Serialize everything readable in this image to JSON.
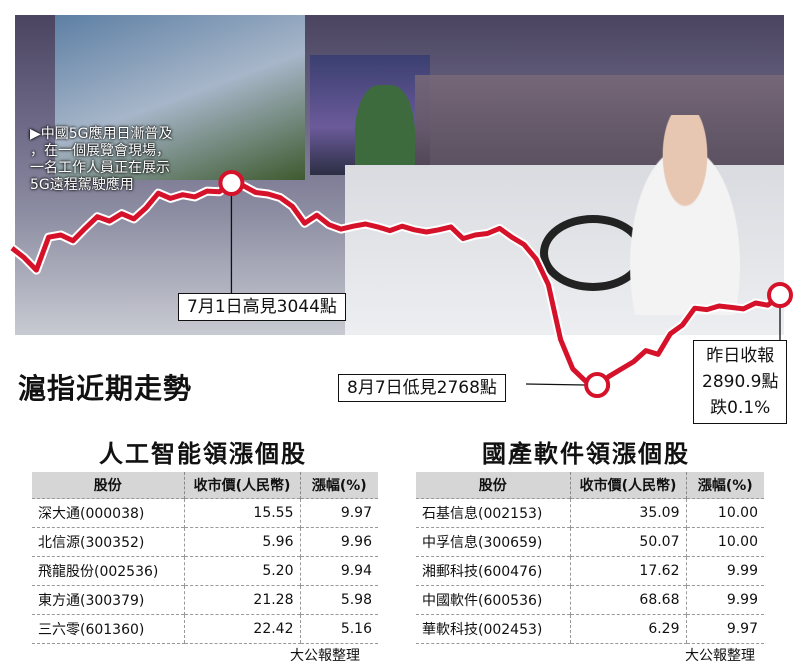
{
  "photo_caption": [
    "▶中國5G應用日漸普及",
    "，在一個展覽會現場，",
    "一名工作人員正在展示",
    "5G遠程駕駛應用"
  ],
  "chart_data": {
    "type": "line",
    "title": "滬指近期走勢",
    "series": [
      {
        "values": [
          2955,
          2942,
          2925,
          2970,
          2973,
          2965,
          2982,
          2998,
          2992,
          3002,
          2995,
          3010,
          3030,
          3023,
          3028,
          3025,
          3033,
          3032,
          3044,
          3040,
          3031,
          3029,
          3024,
          3012,
          2989,
          3000,
          2987,
          2981,
          2985,
          2988,
          2984,
          2979,
          2985,
          2980,
          2977,
          2980,
          2984,
          2968,
          2973,
          2975,
          2982,
          2970,
          2960,
          2940,
          2905,
          2830,
          2790,
          2774,
          2768,
          2780,
          2790,
          2800,
          2815,
          2810,
          2838,
          2850,
          2873,
          2871,
          2876,
          2874,
          2872,
          2880,
          2877,
          2890.9
        ]
      }
    ],
    "ylim": [
      2700,
      3100
    ],
    "annotations": {
      "high": "7月1日高見3044點",
      "low": "8月7日低見2768點",
      "close_lines": [
        "昨日收報",
        "2890.9點",
        "跌0.1%"
      ]
    }
  },
  "tables": [
    {
      "title": "人工智能領漲個股",
      "headers": [
        "股份",
        "收市價(人民幣)",
        "漲幅(%)"
      ],
      "rows": [
        [
          "深大通(000038)",
          "15.55",
          "9.97"
        ],
        [
          "北信源(300352)",
          "5.96",
          "9.96"
        ],
        [
          "飛龍股份(002536)",
          "5.20",
          "9.94"
        ],
        [
          "東方通(300379)",
          "21.28",
          "5.98"
        ],
        [
          "三六零(601360)",
          "22.42",
          "5.16"
        ]
      ],
      "source": "大公報整理"
    },
    {
      "title": "國產軟件領漲個股",
      "headers": [
        "股份",
        "收市價(人民幣)",
        "漲幅(%)"
      ],
      "rows": [
        [
          "石基信息(002153)",
          "35.09",
          "10.00"
        ],
        [
          "中孚信息(300659)",
          "50.07",
          "10.00"
        ],
        [
          "湘郵科技(600476)",
          "17.62",
          "9.99"
        ],
        [
          "中國軟件(600536)",
          "68.68",
          "9.99"
        ],
        [
          "華軟科技(002453)",
          "6.29",
          "9.97"
        ]
      ],
      "source": "大公報整理"
    }
  ],
  "colors": {
    "line": "#d5122a",
    "highlight": "#d5122a",
    "header_bg": "#d6d6d6"
  }
}
